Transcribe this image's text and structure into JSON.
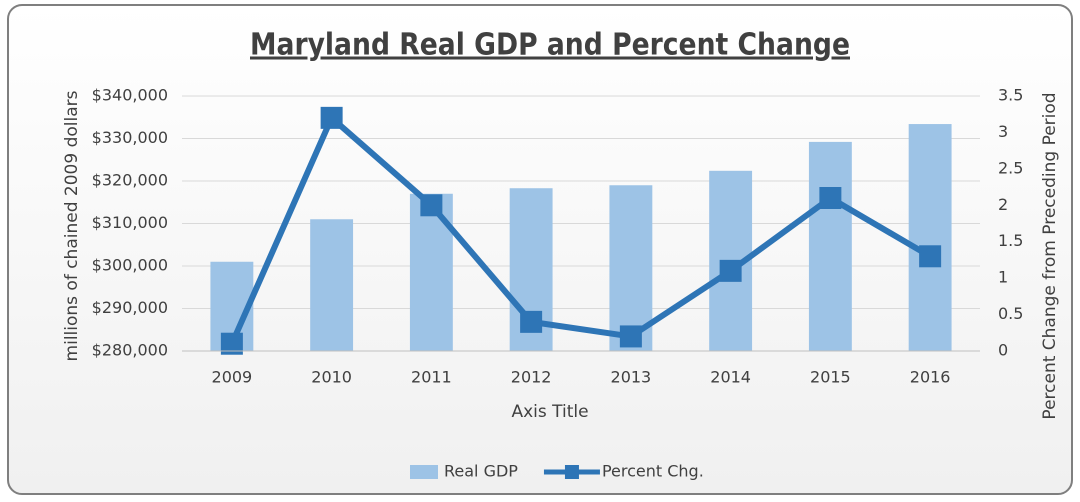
{
  "chart_data": {
    "type": "bar",
    "title": "Maryland Real GDP and Percent Change",
    "x_label": "Axis Title",
    "y_label": "millions of chained 2009 dollars",
    "y2_label": "Percent Change from Preceding Period",
    "categories": [
      "2009",
      "2010",
      "2011",
      "2012",
      "2013",
      "2014",
      "2015",
      "2016"
    ],
    "series": [
      {
        "name": "Real GDP",
        "type": "bar",
        "color": "#9dc3e6",
        "values": [
          301000,
          311000,
          317000,
          318300,
          319000,
          322400,
          329200,
          333400
        ]
      },
      {
        "name": "Percent Chg.",
        "type": "line",
        "axis": "y2",
        "color": "#2e75b6",
        "values": [
          0.1,
          3.2,
          2.0,
          0.4,
          0.2,
          1.1,
          2.1,
          1.3
        ]
      }
    ],
    "ylim": [
      280000,
      340000
    ],
    "yticks": [
      {
        "value": 280000,
        "label": "$280,000"
      },
      {
        "value": 290000,
        "label": "$290,000"
      },
      {
        "value": 300000,
        "label": "$300,000"
      },
      {
        "value": 310000,
        "label": "$310,000"
      },
      {
        "value": 320000,
        "label": "$320,000"
      },
      {
        "value": 330000,
        "label": "$330,000"
      },
      {
        "value": 340000,
        "label": "$340,000"
      }
    ],
    "y2lim": [
      0,
      3.5
    ],
    "y2ticks": [
      0,
      0.5,
      1,
      1.5,
      2,
      2.5,
      3,
      3.5
    ],
    "grid": true,
    "legend": "bottom"
  }
}
